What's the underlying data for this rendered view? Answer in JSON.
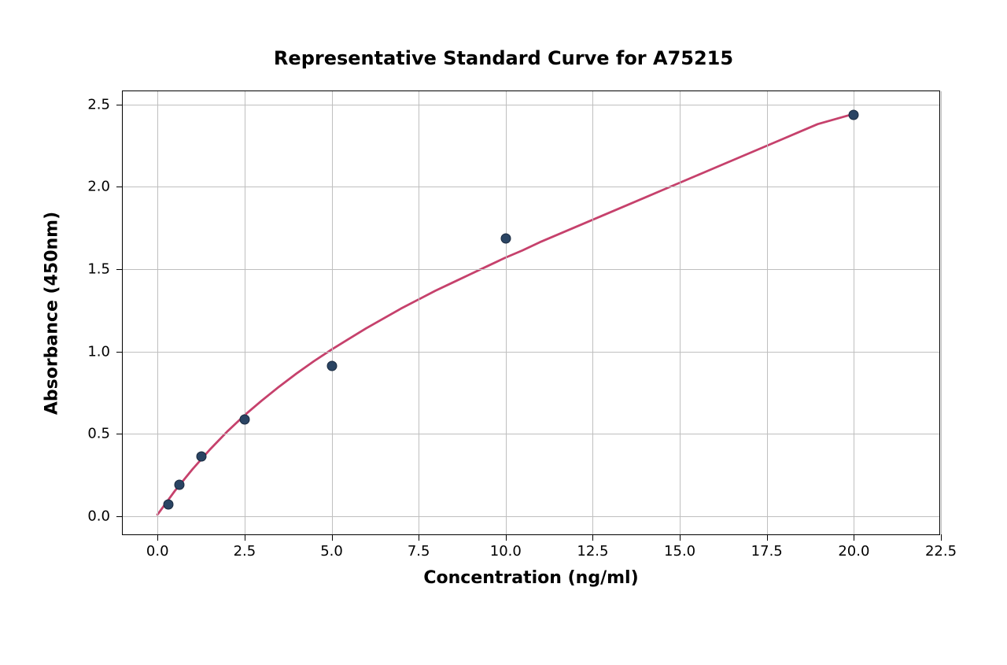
{
  "chart": {
    "type": "line-scatter",
    "title": "Representative Standard Curve for A75215",
    "title_fontsize": 24,
    "title_fontweight": "bold",
    "xlabel": "Concentration (ng/ml)",
    "ylabel": "Absorbance (450nm)",
    "label_fontsize": 22,
    "label_fontweight": "bold",
    "tick_fontsize": 18,
    "background_color": "#ffffff",
    "grid_color": "#bfbfbf",
    "border_color": "#000000",
    "xlim": [
      -1.0,
      22.5
    ],
    "ylim": [
      -0.12,
      2.58
    ],
    "xticks": [
      0.0,
      2.5,
      5.0,
      7.5,
      10.0,
      12.5,
      15.0,
      17.5,
      20.0,
      22.5
    ],
    "xtick_labels": [
      "0.0",
      "2.5",
      "5.0",
      "7.5",
      "10.0",
      "12.5",
      "15.0",
      "17.5",
      "20.0",
      "22.5"
    ],
    "yticks": [
      0.0,
      0.5,
      1.0,
      1.5,
      2.0,
      2.5
    ],
    "ytick_labels": [
      "0.0",
      "0.5",
      "1.0",
      "1.5",
      "2.0",
      "2.5"
    ],
    "scatter": {
      "x": [
        0.312,
        0.625,
        1.25,
        2.5,
        5.0,
        10.0,
        20.0
      ],
      "y": [
        0.07,
        0.19,
        0.365,
        0.585,
        0.91,
        1.685,
        2.435
      ],
      "marker_color": "#2a4463",
      "marker_edge_color": "#1a2a3f",
      "marker_size": 13
    },
    "curve": {
      "color": "#c6416c",
      "width": 2.8,
      "x": [
        0.0,
        0.5,
        1.0,
        1.5,
        2.0,
        2.5,
        3.0,
        3.5,
        4.0,
        4.5,
        5.0,
        5.5,
        6.0,
        6.5,
        7.0,
        7.5,
        8.0,
        8.5,
        9.0,
        9.5,
        10.0,
        10.5,
        11.0,
        11.5,
        12.0,
        12.5,
        13.0,
        13.5,
        14.0,
        14.5,
        15.0,
        15.5,
        16.0,
        16.5,
        17.0,
        17.5,
        18.0,
        18.5,
        19.0,
        19.5,
        20.0
      ],
      "y": [
        0.0,
        0.145,
        0.275,
        0.395,
        0.505,
        0.605,
        0.695,
        0.78,
        0.86,
        0.935,
        1.005,
        1.07,
        1.135,
        1.195,
        1.255,
        1.31,
        1.365,
        1.415,
        1.465,
        1.515,
        1.565,
        1.61,
        1.66,
        1.705,
        1.75,
        1.795,
        1.84,
        1.885,
        1.93,
        1.975,
        2.02,
        2.065,
        2.11,
        2.155,
        2.2,
        2.245,
        2.29,
        2.335,
        2.38,
        2.41,
        2.44
      ]
    },
    "aspect_width": 1280,
    "aspect_height": 845
  }
}
